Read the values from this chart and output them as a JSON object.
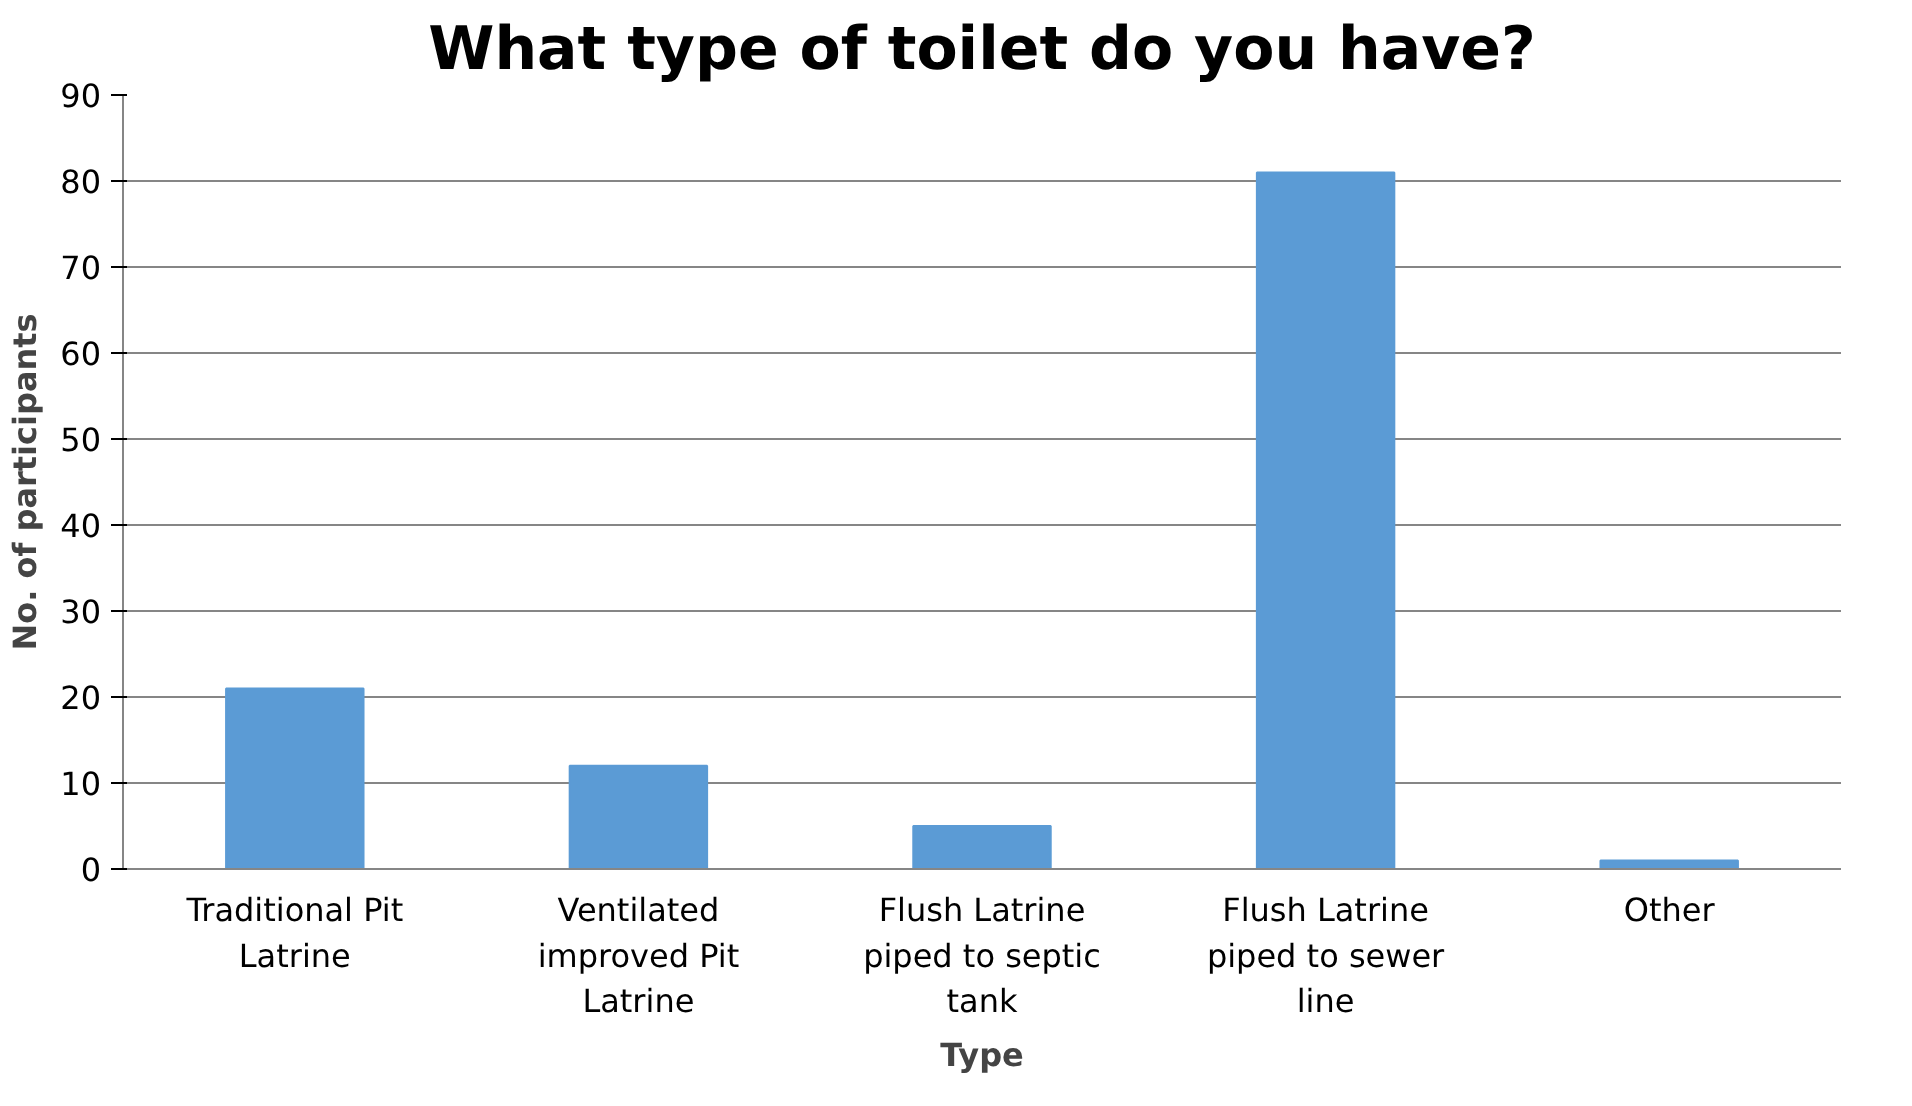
{
  "chart_data": {
    "type": "bar",
    "title": "What type of toilet do you have?",
    "xlabel": "Type",
    "ylabel": "No. of participants",
    "categories": [
      "Traditional Pit Latrine",
      "Ventilated improved Pit Latrine",
      "Flush Latrine piped to septic tank",
      "Flush Latrine piped to sewer line",
      "Other"
    ],
    "values": [
      21,
      12,
      5,
      81,
      1
    ],
    "color": "#5b9bd5",
    "ylim": [
      0,
      90
    ],
    "yticks": [
      0,
      10,
      20,
      30,
      40,
      50,
      60,
      70,
      80,
      90
    ],
    "grid": "y"
  }
}
